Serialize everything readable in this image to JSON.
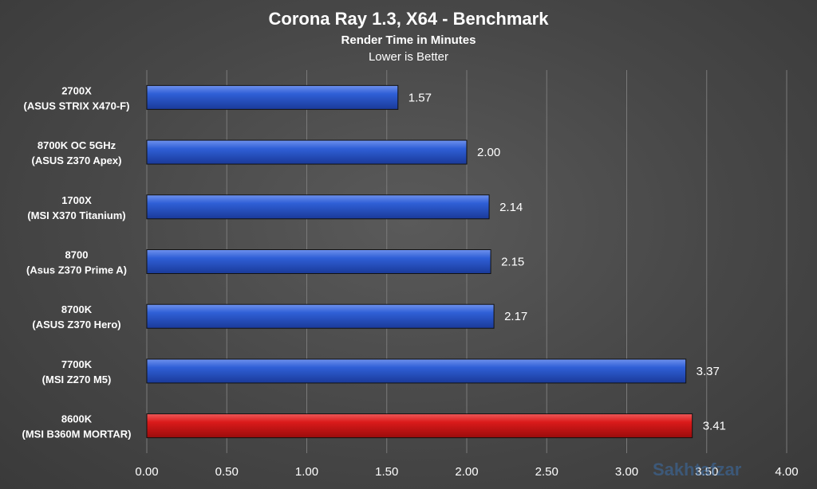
{
  "chart_data": {
    "type": "bar",
    "orientation": "horizontal",
    "title": "Corona Ray 1.3, X64 - Benchmark",
    "subtitle": "Render Time in Minutes",
    "note": "Lower is Better",
    "categories": [
      [
        "2700X",
        "(ASUS STRIX X470-F)"
      ],
      [
        "8700K OC 5GHz",
        "(ASUS Z370 Apex)"
      ],
      [
        "1700X",
        "(MSI X370 Titanium)"
      ],
      [
        "8700",
        "(Asus Z370 Prime A)"
      ],
      [
        "8700K",
        "(ASUS Z370 Hero)"
      ],
      [
        "7700K",
        "(MSI Z270 M5)"
      ],
      [
        "8600K",
        "(MSI B360M MORTAR)"
      ]
    ],
    "values": [
      1.57,
      2.0,
      2.14,
      2.15,
      2.17,
      3.37,
      3.41
    ],
    "value_labels": [
      "1.57",
      "2.00",
      "2.14",
      "2.15",
      "2.17",
      "3.37",
      "3.41"
    ],
    "bar_colors": [
      "#2b57c8",
      "#2b57c8",
      "#2b57c8",
      "#2b57c8",
      "#2b57c8",
      "#2b57c8",
      "#d8121c"
    ],
    "xlim": [
      0,
      4
    ],
    "xticks": [
      "0.00",
      "0.50",
      "1.00",
      "1.50",
      "2.00",
      "2.50",
      "3.00",
      "3.50",
      "4.00"
    ],
    "grid": true,
    "watermark": "Sakhtafzar"
  }
}
